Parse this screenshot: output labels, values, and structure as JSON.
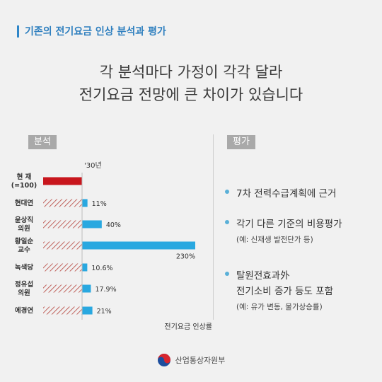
{
  "header": {
    "title": "기존의 전기요금 인상 분석과 평가"
  },
  "headline": {
    "line1": "각 분석마다 가정이 각각 달라",
    "line2": "전기요금 전망에 큰 차이가 있습니다"
  },
  "analysis_label": "분석",
  "evaluation_label": "평가",
  "chart_data": {
    "type": "bar",
    "orientation": "horizontal",
    "year_label": "'30년",
    "xlabel": "전기요금 인상률",
    "categories": [
      {
        "lines": [
          "현 재",
          "(=100)"
        ]
      },
      {
        "lines": [
          "현대연"
        ]
      },
      {
        "lines": [
          "윤상직",
          "의원"
        ]
      },
      {
        "lines": [
          "황일순",
          "교수"
        ]
      },
      {
        "lines": [
          "녹색당"
        ]
      },
      {
        "lines": [
          "정유섭",
          "의원"
        ]
      },
      {
        "lines": [
          "에경연"
        ]
      }
    ],
    "values": [
      null,
      11,
      40,
      230,
      10.6,
      17.9,
      21
    ],
    "labels": [
      "",
      "11%",
      "40%",
      "230%",
      "10.6%",
      "17.9%",
      "21%"
    ],
    "baseline": 100,
    "colors": {
      "current": "#c8161d",
      "increase": "#29a8e0",
      "hatch": "#c0625c"
    }
  },
  "evaluation": {
    "items": [
      {
        "text": "7차 전력수급계획에 근거"
      },
      {
        "text": "각기 다른 기준의 비용평가",
        "note": "(예: 신재생 발전단가 등)"
      },
      {
        "text": "탈원전효과外",
        "text2": "전기소비 증가 등도 포함",
        "note": "(예: 유가 변동, 물가상승률)"
      }
    ]
  },
  "footer": {
    "org": "산업통상자원부",
    "logo_icon": "taegeuk-emblem-icon"
  }
}
